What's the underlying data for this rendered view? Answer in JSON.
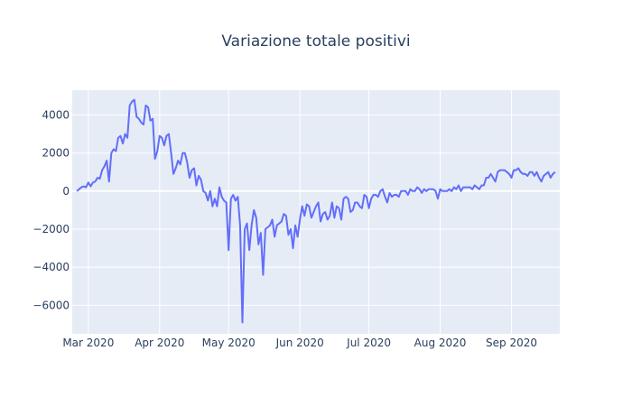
{
  "chart_data": {
    "type": "line",
    "title": "Variazione totale positivi",
    "xlabel": "",
    "ylabel": "",
    "x_start": "2020-02-25",
    "x_range": [
      "2020-02-23",
      "2020-09-22"
    ],
    "ylim": [
      -7500,
      5300
    ],
    "y_ticks": [
      -6000,
      -4000,
      -2000,
      0,
      2000,
      4000
    ],
    "y_tick_labels": [
      "−6000",
      "−4000",
      "−2000",
      "0",
      "2000",
      "4000"
    ],
    "x_ticks": [
      "2020-03-01",
      "2020-04-01",
      "2020-05-01",
      "2020-06-01",
      "2020-07-01",
      "2020-08-01",
      "2020-09-01"
    ],
    "x_tick_labels": [
      "Mar 2020",
      "Apr 2020",
      "May 2020",
      "Jun 2020",
      "Jul 2020",
      "Aug 2020",
      "Sep 2020"
    ],
    "grid": true,
    "colors": {
      "plot_bg": "#e5ecf6",
      "grid": "#ffffff",
      "line": "#636efa",
      "text": "#2a3f5f"
    },
    "series": [
      {
        "name": "",
        "values": [
          0,
          100,
          200,
          250,
          200,
          450,
          250,
          450,
          500,
          700,
          650,
          1100,
          1300,
          1600,
          500,
          2000,
          2200,
          2100,
          2800,
          2900,
          2500,
          3000,
          2800,
          4500,
          4700,
          4800,
          3900,
          3800,
          3600,
          3500,
          4500,
          4400,
          3700,
          3800,
          1700,
          2100,
          2900,
          2800,
          2400,
          2900,
          3000,
          2000,
          900,
          1200,
          1600,
          1400,
          2000,
          2000,
          1500,
          700,
          1100,
          1200,
          300,
          800,
          600,
          0,
          -100,
          -500,
          0,
          -800,
          -400,
          -800,
          200,
          -300,
          -500,
          -600,
          -3100,
          -400,
          -200,
          -500,
          -300,
          -1800,
          -6900,
          -2000,
          -1700,
          -3100,
          -1800,
          -1000,
          -1400,
          -2800,
          -2200,
          -4400,
          -2000,
          -1900,
          -1800,
          -1500,
          -2400,
          -1800,
          -1700,
          -1600,
          -1200,
          -1300,
          -2300,
          -2000,
          -3000,
          -1800,
          -2400,
          -1500,
          -800,
          -1300,
          -700,
          -800,
          -1400,
          -1100,
          -800,
          -600,
          -1600,
          -1200,
          -1100,
          -1500,
          -1300,
          -600,
          -1400,
          -800,
          -900,
          -1500,
          -400,
          -300,
          -400,
          -1100,
          -1000,
          -600,
          -600,
          -800,
          -900,
          -200,
          -300,
          -900,
          -400,
          -200,
          -200,
          -300,
          0,
          100,
          -300,
          -600,
          -100,
          -300,
          -200,
          -200,
          -300,
          0,
          0,
          0,
          -200,
          100,
          0,
          0,
          200,
          100,
          -100,
          100,
          0,
          100,
          100,
          100,
          0,
          -400,
          100,
          0,
          0,
          0,
          100,
          0,
          200,
          100,
          300,
          0,
          200,
          200,
          200,
          200,
          100,
          300,
          200,
          100,
          300,
          300,
          700,
          700,
          900,
          700,
          500,
          1000,
          1100,
          1100,
          1100,
          1000,
          900,
          700,
          1100,
          1100,
          1200,
          1000,
          900,
          900,
          800,
          1000,
          1000,
          800,
          1000,
          700,
          500,
          800,
          900,
          1000,
          700,
          900,
          1000
        ]
      }
    ]
  }
}
